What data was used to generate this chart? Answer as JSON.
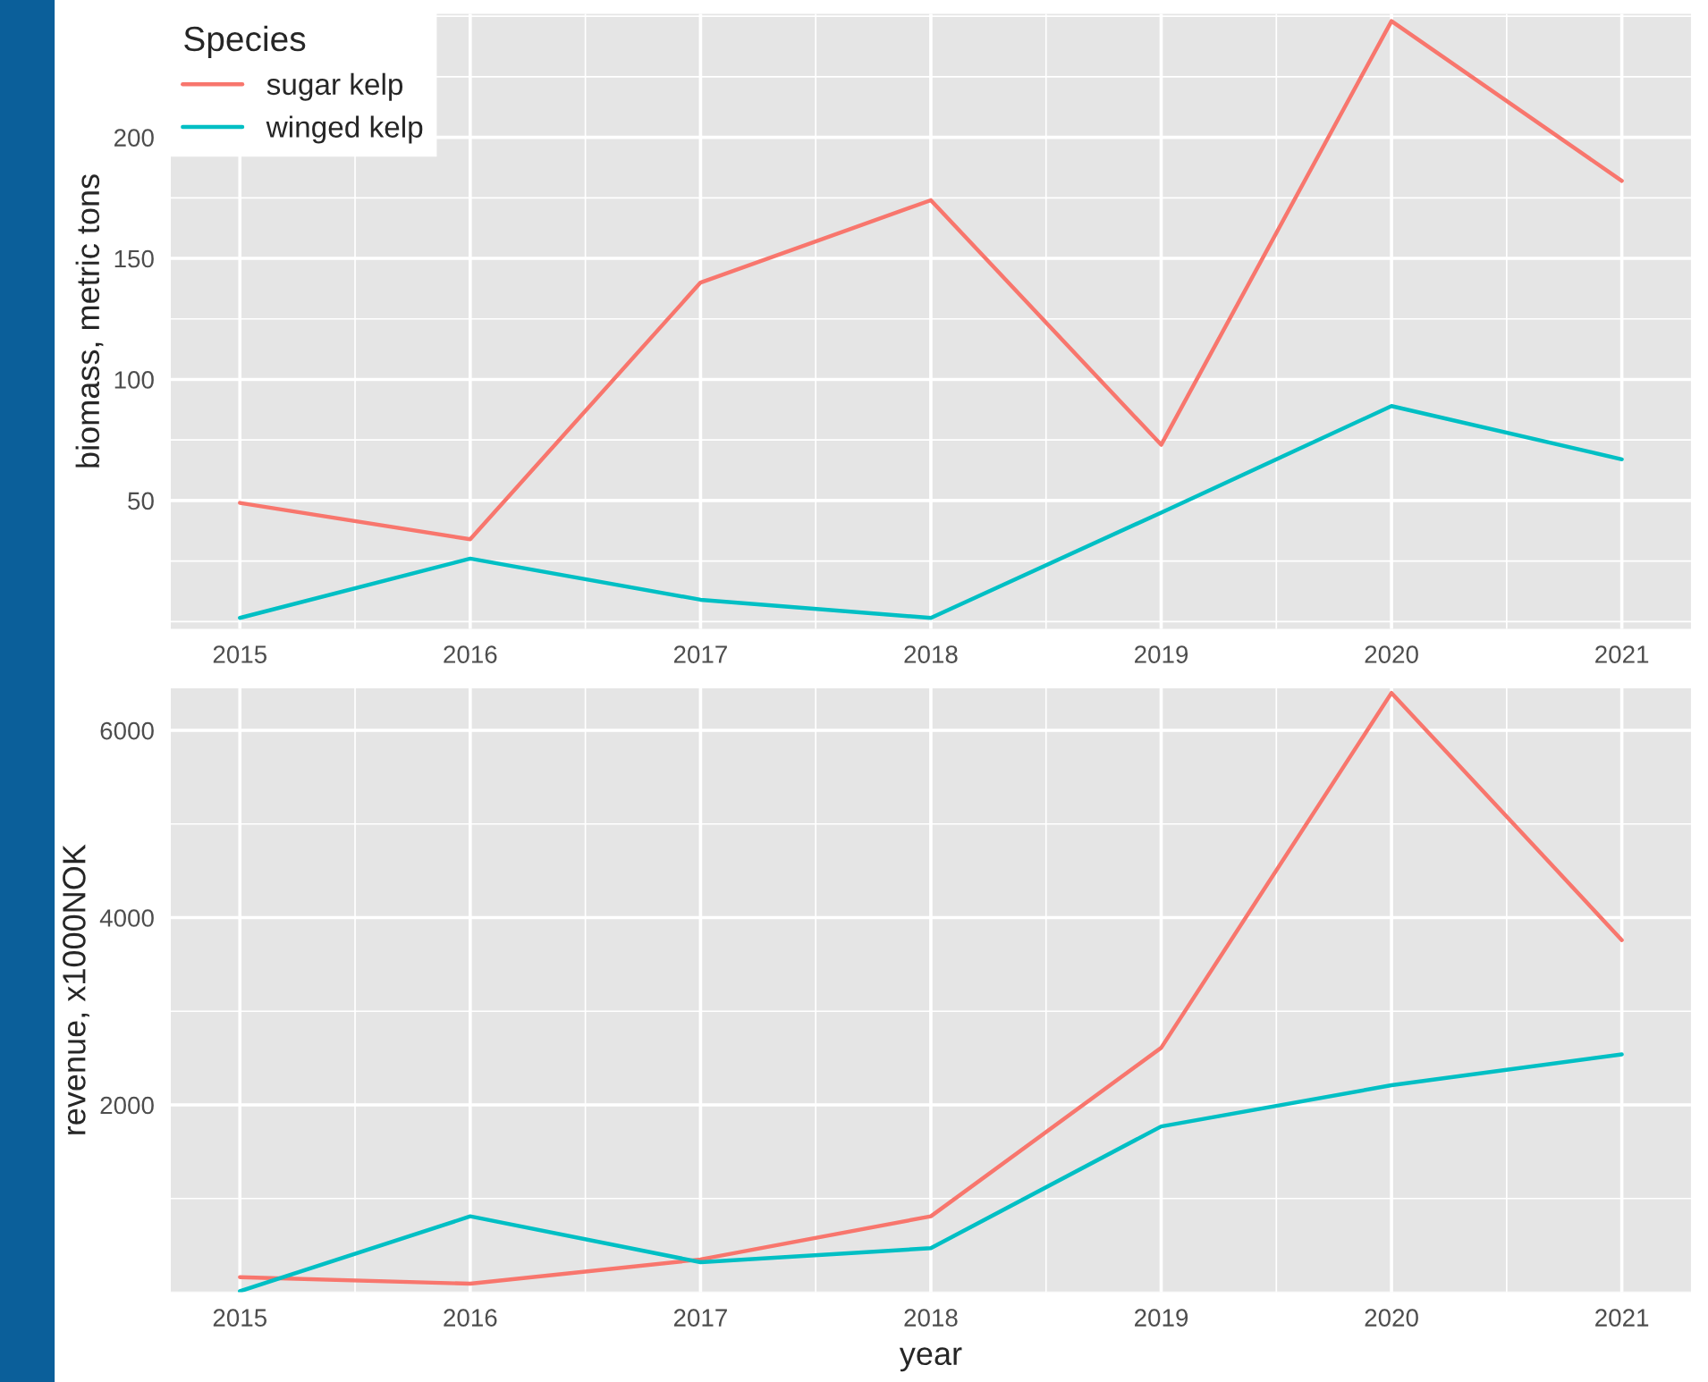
{
  "chart_data": [
    {
      "type": "line",
      "ylabel": "biomass, metric tons",
      "legend_title": "Species",
      "legend": "top left",
      "grid": true,
      "x": [
        2015,
        2016,
        2017,
        2018,
        2019,
        2020,
        2021
      ],
      "series": [
        {
          "name": "sugar kelp",
          "color": "#f8766d",
          "values": [
            49,
            34,
            140,
            174,
            73,
            248,
            182
          ]
        },
        {
          "name": "winged kelp",
          "color": "#00bfc4",
          "values": [
            1.5,
            26,
            9,
            1.5,
            45,
            89,
            67
          ]
        }
      ],
      "xlim": [
        2014.7,
        2021.3
      ],
      "xticks": [
        2015,
        2016,
        2017,
        2018,
        2019,
        2020,
        2021
      ],
      "ylim": [
        -3,
        251
      ],
      "yticks": [
        50,
        100,
        150,
        200
      ]
    },
    {
      "type": "line",
      "xlabel": "year",
      "ylabel": "revenue, x1000NOK",
      "grid": true,
      "x": [
        2015,
        2016,
        2017,
        2018,
        2019,
        2020,
        2021
      ],
      "series": [
        {
          "color": "#f8766d",
          "values": [
            160,
            90,
            350,
            810,
            2610,
            6400,
            3760
          ]
        },
        {
          "color": "#00bfc4",
          "values": [
            10,
            810,
            320,
            470,
            1770,
            2210,
            2540
          ]
        }
      ],
      "xlim": [
        2014.7,
        2021.3
      ],
      "xticks": [
        2015,
        2016,
        2017,
        2018,
        2019,
        2020,
        2021
      ],
      "ylim": [
        0,
        6450
      ],
      "yticks": [
        2000,
        4000,
        6000
      ]
    }
  ]
}
